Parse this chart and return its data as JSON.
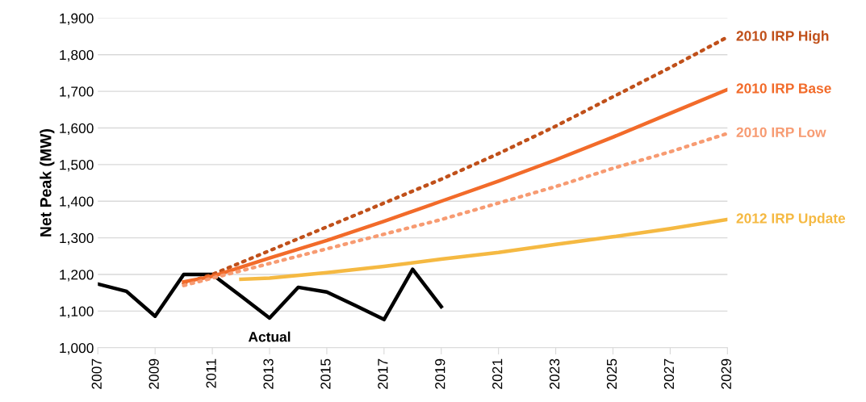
{
  "chart_data": {
    "type": "line",
    "ylabel": "Net Peak (MW)",
    "xlim": [
      2007,
      2029
    ],
    "xticks": [
      2007,
      2009,
      2011,
      2013,
      2015,
      2017,
      2019,
      2021,
      2023,
      2025,
      2027,
      2029
    ],
    "ylim": [
      1000,
      1900
    ],
    "yticks": [
      {
        "value": 1000,
        "label": "1,000"
      },
      {
        "value": 1100,
        "label": "1,100"
      },
      {
        "value": 1200,
        "label": "1,200"
      },
      {
        "value": 1300,
        "label": "1,300"
      },
      {
        "value": 1400,
        "label": "1,400"
      },
      {
        "value": 1500,
        "label": "1,500"
      },
      {
        "value": 1600,
        "label": "1,600"
      },
      {
        "value": 1700,
        "label": "1,700"
      },
      {
        "value": 1800,
        "label": "1,800"
      },
      {
        "value": 1900,
        "label": "1,900"
      }
    ],
    "grid": "y",
    "legend": false,
    "marker": "none",
    "series": [
      {
        "color": "#000000",
        "line_style": "solid",
        "x": [
          2007,
          2008,
          2009,
          2010,
          2011,
          2012,
          2013,
          2014,
          2015,
          2016,
          2017,
          2018,
          2019
        ],
        "values": [
          1174,
          1154,
          1086,
          1200,
          1200,
          1141,
          1081,
          1165,
          1152,
          1115,
          1077,
          1214,
          1112
        ]
      },
      {
        "name": "2010 IRP High",
        "color": "#c0501a",
        "line_style": "dotted",
        "x": [
          2010,
          2011,
          2013,
          2015,
          2017,
          2019,
          2021,
          2023,
          2025,
          2027,
          2029
        ],
        "values": [
          1175,
          1200,
          1265,
          1330,
          1395,
          1460,
          1530,
          1605,
          1685,
          1765,
          1848
        ]
      },
      {
        "name": "2010 IRP Base",
        "color": "#f26b2a",
        "line_style": "solid",
        "x": [
          2010,
          2011,
          2013,
          2015,
          2017,
          2019,
          2021,
          2023,
          2025,
          2027,
          2029
        ],
        "values": [
          1180,
          1195,
          1245,
          1293,
          1345,
          1400,
          1455,
          1513,
          1575,
          1640,
          1705
        ]
      },
      {
        "name": "2010 IRP Low",
        "color": "#f79b72",
        "line_style": "dotted",
        "x": [
          2010,
          2011,
          2013,
          2015,
          2017,
          2019,
          2021,
          2023,
          2025,
          2027,
          2029
        ],
        "values": [
          1170,
          1190,
          1230,
          1270,
          1310,
          1350,
          1395,
          1440,
          1490,
          1535,
          1585
        ]
      },
      {
        "name": "2012 IRP Update",
        "color": "#f5b942",
        "line_style": "solid",
        "x": [
          2012,
          2013,
          2015,
          2017,
          2019,
          2021,
          2023,
          2025,
          2027,
          2029
        ],
        "values": [
          1187,
          1190,
          1205,
          1222,
          1242,
          1260,
          1282,
          1303,
          1325,
          1350
        ]
      }
    ],
    "annotations": [
      {
        "text": "Actual",
        "x": 2013,
        "y": 1081
      }
    ]
  }
}
